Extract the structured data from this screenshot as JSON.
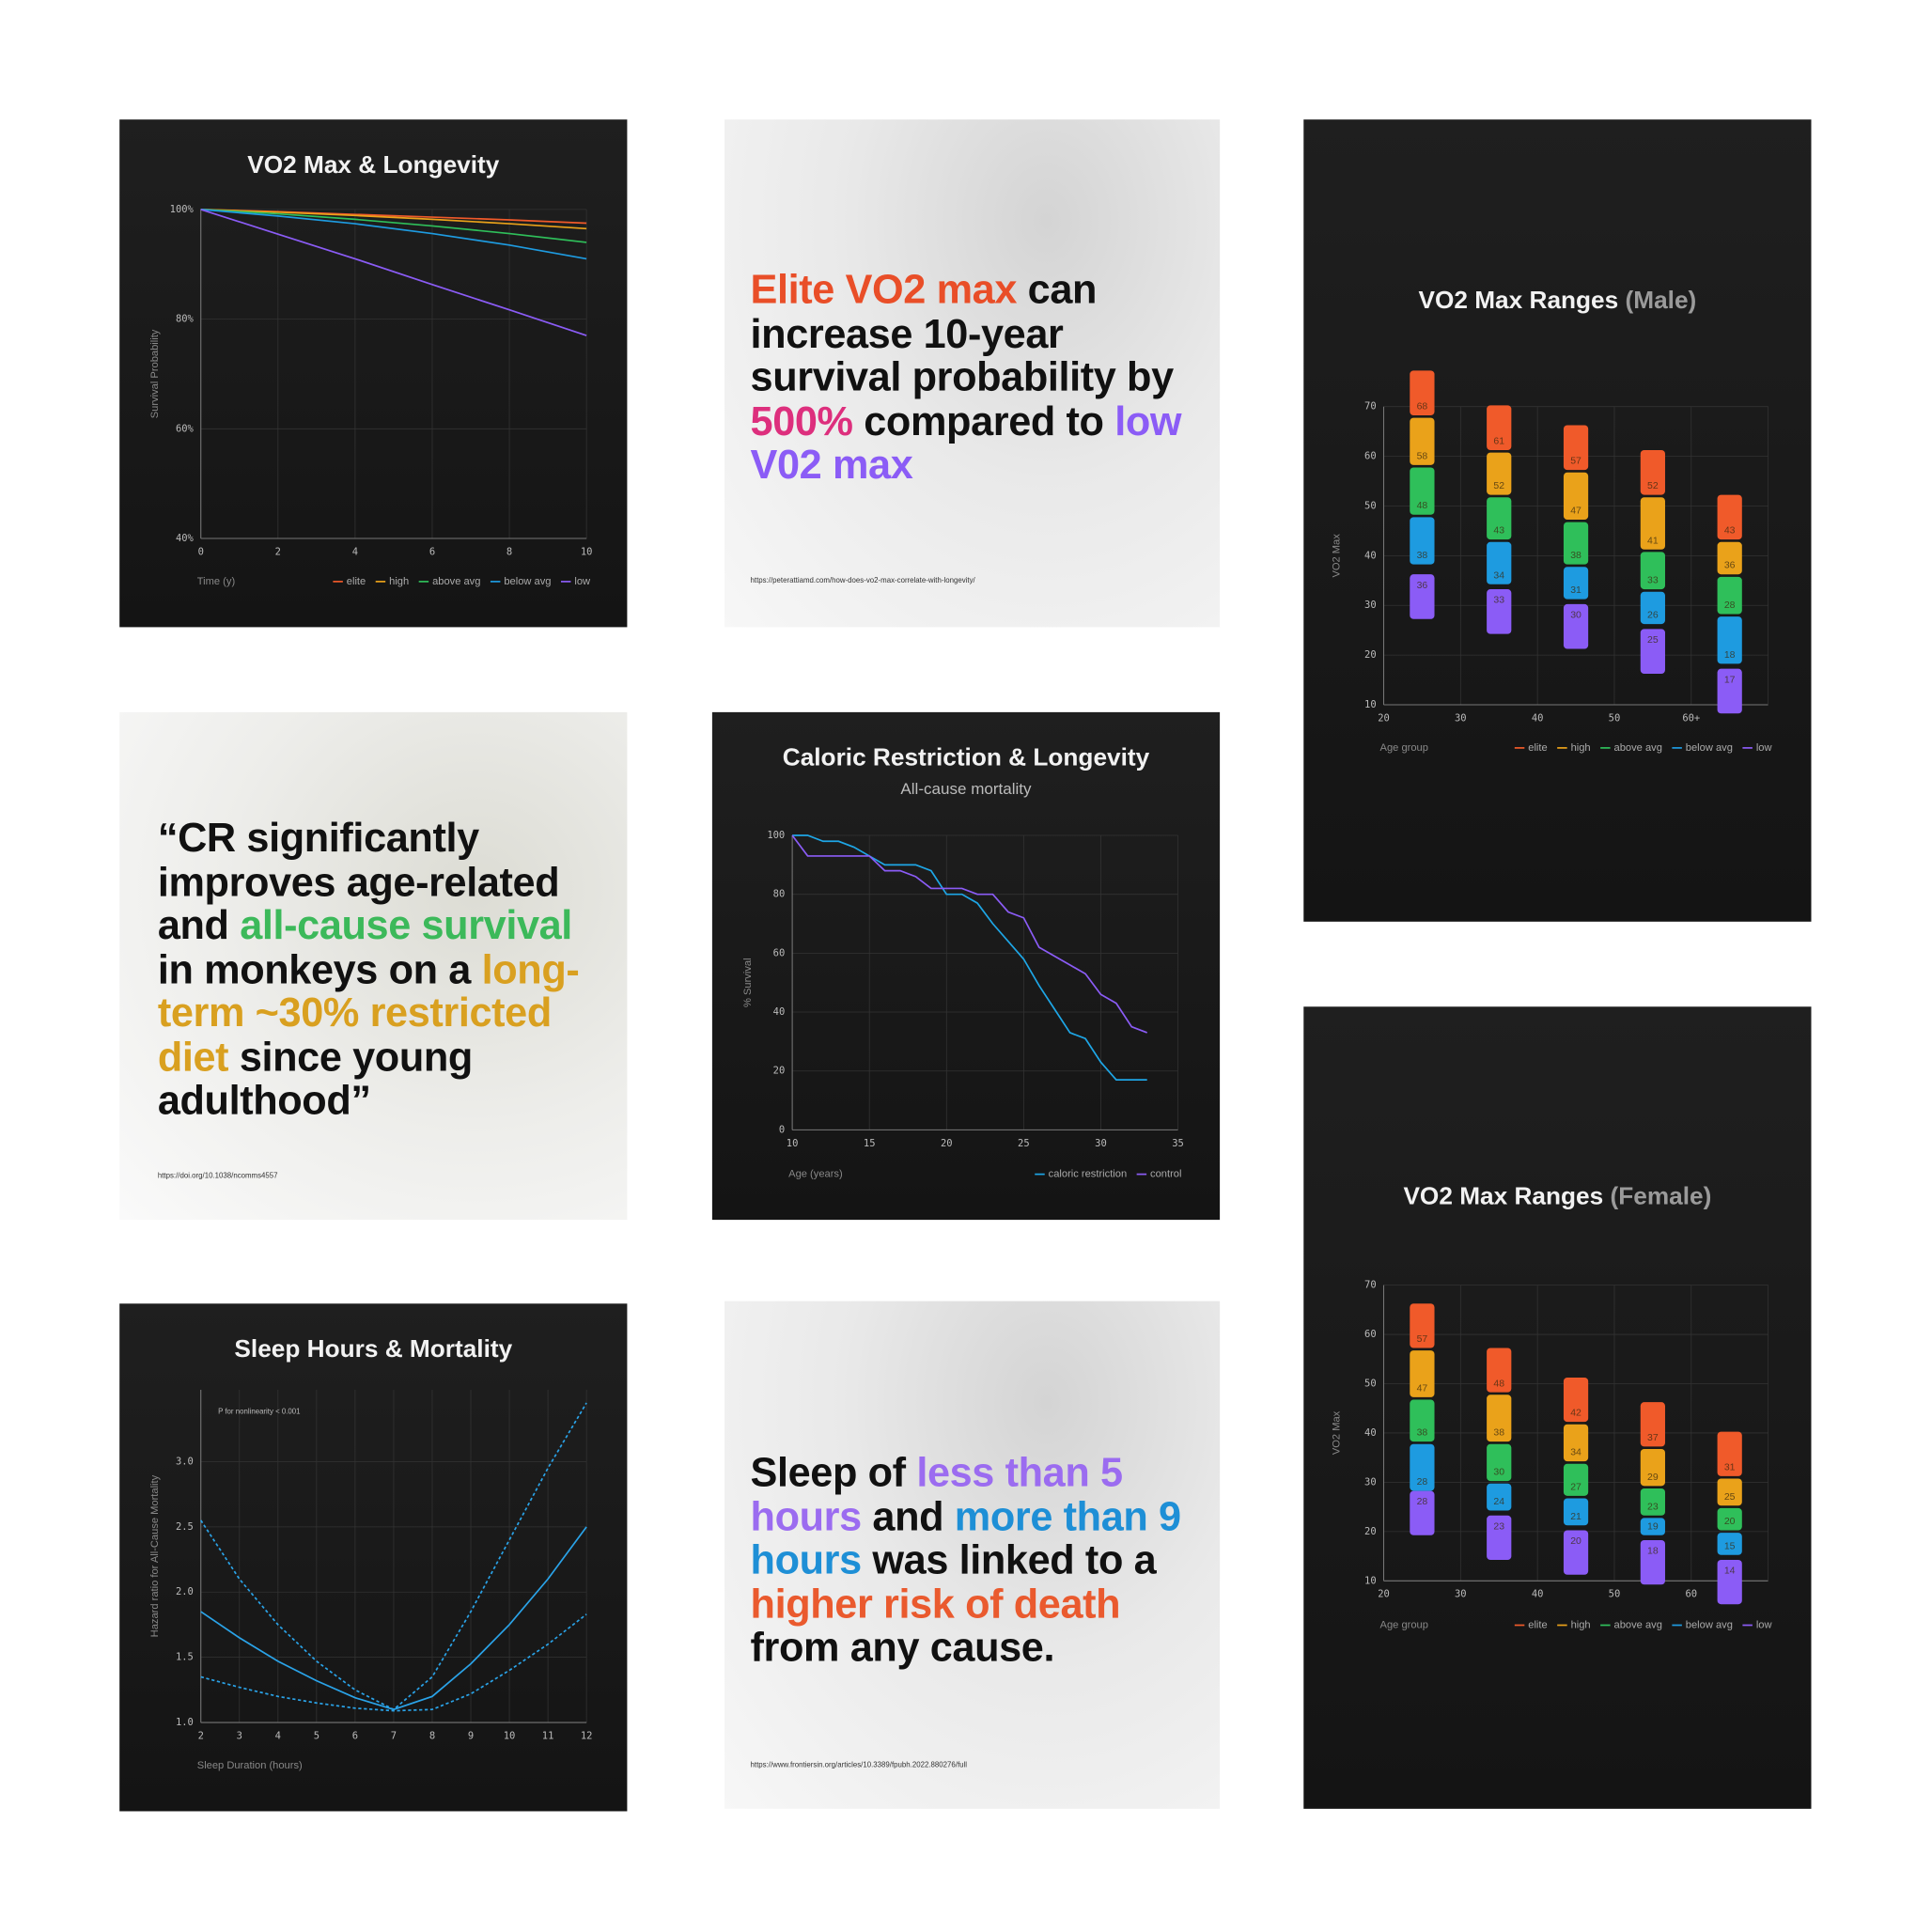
{
  "chart_data": [
    {
      "type": "line",
      "title": "VO2 Max & Longevity",
      "x_label": "Time (y)",
      "y_label": "Survival Probability",
      "x": [
        0,
        2,
        4,
        6,
        8,
        10
      ],
      "xlim": [
        0,
        10
      ],
      "xticks": [
        0,
        2,
        4,
        6,
        8,
        10
      ],
      "ylim": [
        40,
        100
      ],
      "yticks": [
        {
          "value": 40,
          "label": "40%"
        },
        {
          "value": 60,
          "label": "60%"
        },
        {
          "value": 80,
          "label": "80%"
        },
        {
          "value": 100,
          "label": "100%"
        }
      ],
      "grid": true,
      "legend": "bottom-right",
      "series": [
        {
          "name": "elite",
          "color": "#f05a2a",
          "values": [
            100,
            99.6,
            99.1,
            98.6,
            98.1,
            97.5
          ]
        },
        {
          "name": "high",
          "color": "#eaa21a",
          "values": [
            100,
            99.5,
            98.9,
            98.2,
            97.4,
            96.5
          ]
        },
        {
          "name": "above avg",
          "color": "#2fbf5a",
          "values": [
            100,
            99.2,
            98.2,
            97.0,
            95.6,
            94.0
          ]
        },
        {
          "name": "below avg",
          "color": "#1e9be0",
          "values": [
            100,
            98.8,
            97.4,
            95.6,
            93.5,
            91.0
          ]
        },
        {
          "name": "low",
          "color": "#8b5cf6",
          "values": [
            100,
            95.5,
            91.0,
            86.3,
            81.7,
            77.0
          ]
        }
      ]
    },
    {
      "type": "range",
      "title": "VO2 Max Ranges",
      "title_note": "(Male)",
      "x_label": "Age group",
      "y_label": "VO2 Max",
      "x": [
        25,
        35,
        45,
        55,
        65
      ],
      "xlim": [
        20,
        70
      ],
      "xticks": [
        20,
        30,
        40,
        50,
        {
          "value": 60,
          "label": "60+"
        }
      ],
      "ylim": [
        10,
        70
      ],
      "yticks": [
        10,
        20,
        30,
        40,
        50,
        60,
        70
      ],
      "grid": true,
      "legend": "bottom-right",
      "series": [
        {
          "name": "elite",
          "color": "#f05a2a",
          "values": [
            68,
            61,
            57,
            52,
            43
          ]
        },
        {
          "name": "high",
          "color": "#eaa21a",
          "values": [
            58,
            52,
            47,
            41,
            36
          ]
        },
        {
          "name": "above avg",
          "color": "#2fbf5a",
          "values": [
            48,
            43,
            38,
            33,
            28
          ]
        },
        {
          "name": "below avg",
          "color": "#1e9be0",
          "values": [
            38,
            34,
            31,
            26,
            18
          ]
        },
        {
          "name": "low",
          "color": "#8b5cf6",
          "values": [
            36,
            33,
            30,
            25,
            17
          ]
        }
      ]
    },
    {
      "type": "line",
      "title": "Caloric Restriction & Longevity",
      "subtitle": "All-cause mortality",
      "x_label": "Age (years)",
      "y_label": "% Survival",
      "xlim": [
        10,
        35
      ],
      "xticks": [
        10,
        15,
        20,
        25,
        30,
        35
      ],
      "ylim": [
        0,
        100
      ],
      "yticks": [
        0,
        20,
        40,
        60,
        80,
        100
      ],
      "grid": true,
      "legend": "bottom-right",
      "series": [
        {
          "name": "caloric restriction",
          "color": "#1ea6e6",
          "x": [
            10,
            11,
            12,
            13,
            14,
            15,
            16,
            18,
            19,
            20,
            21,
            22,
            23,
            24,
            25,
            26,
            27,
            28,
            29,
            30,
            31,
            33
          ],
          "values": [
            100,
            100,
            98,
            98,
            96,
            93,
            90,
            90,
            88,
            80,
            80,
            77,
            70,
            64,
            58,
            49,
            41,
            33,
            31,
            23,
            17,
            17
          ]
        },
        {
          "name": "control",
          "color": "#8b5cf6",
          "x": [
            10,
            11,
            12,
            15,
            16,
            17,
            18,
            19,
            21,
            22,
            23,
            24,
            25,
            26,
            27,
            28,
            29,
            30,
            31,
            32,
            33
          ],
          "values": [
            100,
            93,
            93,
            93,
            88,
            88,
            86,
            82,
            82,
            80,
            80,
            74,
            72,
            62,
            59,
            56,
            53,
            46,
            43,
            35,
            33
          ]
        }
      ]
    },
    {
      "type": "line",
      "title": "Sleep Hours & Mortality",
      "annotation": "P for nonlinearity < 0.001",
      "x_label": "Sleep Duration (hours)",
      "y_label": "Hazard ratio for All-Cause Mortality",
      "x": [
        2,
        3,
        4,
        5,
        6,
        7,
        8,
        9,
        10,
        11,
        12
      ],
      "xlim": [
        2,
        12
      ],
      "xticks": [
        2,
        3,
        4,
        5,
        6,
        7,
        8,
        9,
        10,
        11,
        12
      ],
      "ylim": [
        1.0,
        3.55
      ],
      "yticks": [
        {
          "value": 1,
          "label": "1.0"
        },
        1.5,
        {
          "value": 2,
          "label": "2.0"
        },
        2.5,
        {
          "value": 3,
          "label": "3.0"
        }
      ],
      "grid": true,
      "series": [
        {
          "color": "#2aa3e8",
          "dashed": false,
          "values": [
            1.85,
            1.65,
            1.47,
            1.32,
            1.19,
            1.1,
            1.2,
            1.45,
            1.75,
            2.1,
            2.5
          ]
        },
        {
          "color": "#2aa3e8",
          "dashed": true,
          "values": [
            2.55,
            2.1,
            1.75,
            1.47,
            1.25,
            1.1,
            1.35,
            1.85,
            2.4,
            2.95,
            3.45
          ]
        },
        {
          "color": "#2aa3e8",
          "dashed": true,
          "values": [
            1.35,
            1.27,
            1.2,
            1.15,
            1.11,
            1.09,
            1.1,
            1.22,
            1.4,
            1.6,
            1.83
          ]
        }
      ]
    },
    {
      "type": "range",
      "title": "VO2 Max Ranges",
      "title_note": "(Female)",
      "x_label": "Age group",
      "y_label": "VO2 Max",
      "x": [
        25,
        35,
        45,
        55,
        65
      ],
      "xlim": [
        20,
        70
      ],
      "xticks": [
        20,
        30,
        40,
        50,
        60
      ],
      "ylim": [
        10,
        70
      ],
      "yticks": [
        10,
        20,
        30,
        40,
        50,
        60,
        70
      ],
      "grid": true,
      "legend": "bottom-right",
      "series": [
        {
          "name": "elite",
          "color": "#f05a2a",
          "values": [
            57,
            48,
            42,
            37,
            31
          ]
        },
        {
          "name": "high",
          "color": "#eaa21a",
          "values": [
            47,
            38,
            34,
            29,
            25
          ]
        },
        {
          "name": "above avg",
          "color": "#2fbf5a",
          "values": [
            38,
            30,
            27,
            23,
            20
          ]
        },
        {
          "name": "below avg",
          "color": "#1e9be0",
          "values": [
            28,
            24,
            21,
            19,
            15
          ]
        },
        {
          "name": "low",
          "color": "#8b5cf6",
          "values": [
            28,
            23,
            20,
            18,
            14
          ]
        }
      ]
    }
  ],
  "text_panels": [
    {
      "segments": [
        {
          "text": "Elite VO2 max",
          "color": "#e94e28"
        },
        {
          "text": " can increase 10-year survival probability by "
        },
        {
          "text": "500%",
          "color": "#dd2f7d"
        },
        {
          "text": " compared to "
        },
        {
          "text": "low V02 max",
          "color": "#8b5cf6"
        }
      ],
      "source": "https://peterattiamd.com/how-does-vo2-max-correlate-with-longevity/"
    },
    {
      "segments": [
        {
          "text": "“CR significantly improves age-related and "
        },
        {
          "text": "all-cause survival",
          "color": "#3cb95a"
        },
        {
          "text": " in monkeys on a "
        },
        {
          "text": "long-term ~30% restricted diet",
          "color": "#d9a020"
        },
        {
          "text": " since young adulthood”"
        }
      ],
      "source": "https://doi.org/10.1038/ncomms4557"
    },
    {
      "segments": [
        {
          "text": "Sleep of "
        },
        {
          "text": "less than 5 hours",
          "color": "#9b6cf0"
        },
        {
          "text": " and "
        },
        {
          "text": "more than 9 hours",
          "color": "#1e8fd6"
        },
        {
          "text": " was linked to a "
        },
        {
          "text": "higher risk of death",
          "color": "#ea5a2e"
        },
        {
          "text": " from any cause."
        }
      ],
      "source": "https://www.frontiersin.org/articles/10.3389/fpubh.2022.880276/full"
    }
  ]
}
